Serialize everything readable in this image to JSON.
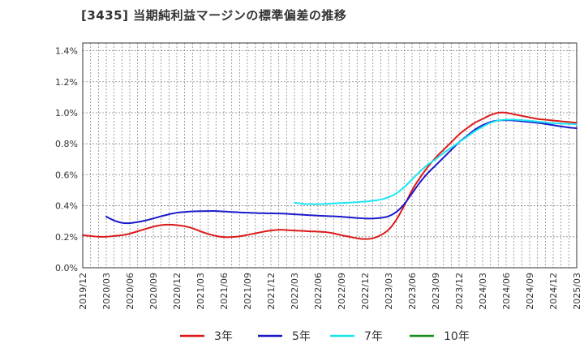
{
  "chart_data": {
    "type": "line",
    "title": "[3435]  当期純利益マージンの標準偏差の推移",
    "xlabel": "",
    "ylabel": "",
    "x_ticks": [
      "2019/12",
      "2020/03",
      "2020/06",
      "2020/09",
      "2020/12",
      "2021/03",
      "2021/06",
      "2021/09",
      "2021/12",
      "2022/03",
      "2022/06",
      "2022/09",
      "2022/12",
      "2023/03",
      "2023/06",
      "2023/09",
      "2023/12",
      "2024/03",
      "2024/06",
      "2024/09",
      "2024/12",
      "2025/03"
    ],
    "y_ticks": [
      "0.0%",
      "0.2%",
      "0.4%",
      "0.6%",
      "0.8%",
      "1.0%",
      "1.2%",
      "1.4%"
    ],
    "ylim": [
      0,
      1.45
    ],
    "x_range": [
      "2019/12",
      "2025/03"
    ],
    "grid": true,
    "legend_position": "bottom",
    "series": [
      {
        "name": "3年",
        "color": "#dd1a1a",
        "points": [
          [
            "2019/12",
            0.21
          ],
          [
            "2020/01",
            0.205
          ],
          [
            "2020/02",
            0.2
          ],
          [
            "2020/03",
            0.2
          ],
          [
            "2020/04",
            0.205
          ],
          [
            "2020/05",
            0.21
          ],
          [
            "2020/06",
            0.22
          ],
          [
            "2020/07",
            0.235
          ],
          [
            "2020/08",
            0.25
          ],
          [
            "2020/09",
            0.265
          ],
          [
            "2020/10",
            0.275
          ],
          [
            "2020/11",
            0.278
          ],
          [
            "2020/12",
            0.275
          ],
          [
            "2021/01",
            0.268
          ],
          [
            "2021/02",
            0.255
          ],
          [
            "2021/03",
            0.235
          ],
          [
            "2021/04",
            0.218
          ],
          [
            "2021/05",
            0.205
          ],
          [
            "2021/06",
            0.198
          ],
          [
            "2021/07",
            0.198
          ],
          [
            "2021/08",
            0.203
          ],
          [
            "2021/09",
            0.212
          ],
          [
            "2021/10",
            0.222
          ],
          [
            "2021/11",
            0.232
          ],
          [
            "2021/12",
            0.24
          ],
          [
            "2022/01",
            0.245
          ],
          [
            "2022/02",
            0.243
          ],
          [
            "2022/03",
            0.24
          ],
          [
            "2022/04",
            0.238
          ],
          [
            "2022/05",
            0.235
          ],
          [
            "2022/06",
            0.233
          ],
          [
            "2022/07",
            0.23
          ],
          [
            "2022/08",
            0.222
          ],
          [
            "2022/09",
            0.21
          ],
          [
            "2022/10",
            0.2
          ],
          [
            "2022/11",
            0.19
          ],
          [
            "2022/12",
            0.185
          ],
          [
            "2023/01",
            0.19
          ],
          [
            "2023/02",
            0.21
          ],
          [
            "2023/03",
            0.245
          ],
          [
            "2023/04",
            0.31
          ],
          [
            "2023/05",
            0.4
          ],
          [
            "2023/06",
            0.5
          ],
          [
            "2023/07",
            0.58
          ],
          [
            "2023/08",
            0.65
          ],
          [
            "2023/09",
            0.71
          ],
          [
            "2023/10",
            0.76
          ],
          [
            "2023/11",
            0.81
          ],
          [
            "2023/12",
            0.86
          ],
          [
            "2024/01",
            0.9
          ],
          [
            "2024/02",
            0.935
          ],
          [
            "2024/03",
            0.96
          ],
          [
            "2024/04",
            0.985
          ],
          [
            "2024/05",
            1.0
          ],
          [
            "2024/06",
            1.0
          ],
          [
            "2024/07",
            0.99
          ],
          [
            "2024/08",
            0.98
          ],
          [
            "2024/09",
            0.97
          ],
          [
            "2024/10",
            0.96
          ],
          [
            "2024/11",
            0.955
          ],
          [
            "2024/12",
            0.95
          ],
          [
            "2025/01",
            0.945
          ],
          [
            "2025/02",
            0.94
          ],
          [
            "2025/03",
            0.935
          ]
        ]
      },
      {
        "name": "5年",
        "color": "#1a1acc",
        "points": [
          [
            "2020/03",
            0.33
          ],
          [
            "2020/04",
            0.305
          ],
          [
            "2020/05",
            0.29
          ],
          [
            "2020/06",
            0.288
          ],
          [
            "2020/07",
            0.295
          ],
          [
            "2020/08",
            0.305
          ],
          [
            "2020/09",
            0.318
          ],
          [
            "2020/10",
            0.332
          ],
          [
            "2020/11",
            0.345
          ],
          [
            "2020/12",
            0.355
          ],
          [
            "2021/01",
            0.36
          ],
          [
            "2021/02",
            0.364
          ],
          [
            "2021/03",
            0.365
          ],
          [
            "2021/04",
            0.366
          ],
          [
            "2021/05",
            0.366
          ],
          [
            "2021/06",
            0.363
          ],
          [
            "2021/07",
            0.36
          ],
          [
            "2021/08",
            0.357
          ],
          [
            "2021/09",
            0.355
          ],
          [
            "2021/10",
            0.353
          ],
          [
            "2021/11",
            0.352
          ],
          [
            "2021/12",
            0.351
          ],
          [
            "2022/01",
            0.35
          ],
          [
            "2022/02",
            0.348
          ],
          [
            "2022/03",
            0.345
          ],
          [
            "2022/04",
            0.342
          ],
          [
            "2022/05",
            0.339
          ],
          [
            "2022/06",
            0.336
          ],
          [
            "2022/07",
            0.334
          ],
          [
            "2022/08",
            0.332
          ],
          [
            "2022/09",
            0.329
          ],
          [
            "2022/10",
            0.325
          ],
          [
            "2022/11",
            0.321
          ],
          [
            "2022/12",
            0.318
          ],
          [
            "2023/01",
            0.318
          ],
          [
            "2023/02",
            0.322
          ],
          [
            "2023/03",
            0.332
          ],
          [
            "2023/04",
            0.36
          ],
          [
            "2023/05",
            0.41
          ],
          [
            "2023/06",
            0.48
          ],
          [
            "2023/07",
            0.55
          ],
          [
            "2023/08",
            0.61
          ],
          [
            "2023/09",
            0.66
          ],
          [
            "2023/10",
            0.71
          ],
          [
            "2023/11",
            0.76
          ],
          [
            "2023/12",
            0.81
          ],
          [
            "2024/01",
            0.85
          ],
          [
            "2024/02",
            0.89
          ],
          [
            "2024/03",
            0.92
          ],
          [
            "2024/04",
            0.94
          ],
          [
            "2024/05",
            0.95
          ],
          [
            "2024/06",
            0.952
          ],
          [
            "2024/07",
            0.95
          ],
          [
            "2024/08",
            0.945
          ],
          [
            "2024/09",
            0.94
          ],
          [
            "2024/10",
            0.935
          ],
          [
            "2024/11",
            0.928
          ],
          [
            "2024/12",
            0.92
          ],
          [
            "2025/01",
            0.912
          ],
          [
            "2025/02",
            0.905
          ],
          [
            "2025/03",
            0.9
          ]
        ]
      },
      {
        "name": "7年",
        "color": "#1ae6f0",
        "points": [
          [
            "2022/03",
            0.42
          ],
          [
            "2022/04",
            0.413
          ],
          [
            "2022/05",
            0.41
          ],
          [
            "2022/06",
            0.41
          ],
          [
            "2022/07",
            0.412
          ],
          [
            "2022/08",
            0.415
          ],
          [
            "2022/09",
            0.418
          ],
          [
            "2022/10",
            0.42
          ],
          [
            "2022/11",
            0.423
          ],
          [
            "2022/12",
            0.427
          ],
          [
            "2023/01",
            0.432
          ],
          [
            "2023/02",
            0.44
          ],
          [
            "2023/03",
            0.455
          ],
          [
            "2023/04",
            0.48
          ],
          [
            "2023/05",
            0.52
          ],
          [
            "2023/06",
            0.57
          ],
          [
            "2023/07",
            0.62
          ],
          [
            "2023/08",
            0.665
          ],
          [
            "2023/09",
            0.7
          ],
          [
            "2023/10",
            0.74
          ],
          [
            "2023/11",
            0.775
          ],
          [
            "2023/12",
            0.81
          ],
          [
            "2024/01",
            0.845
          ],
          [
            "2024/02",
            0.88
          ],
          [
            "2024/03",
            0.91
          ],
          [
            "2024/04",
            0.935
          ],
          [
            "2024/05",
            0.95
          ],
          [
            "2024/06",
            0.955
          ],
          [
            "2024/07",
            0.955
          ],
          [
            "2024/08",
            0.952
          ],
          [
            "2024/09",
            0.948
          ],
          [
            "2024/10",
            0.943
          ],
          [
            "2024/11",
            0.938
          ],
          [
            "2024/12",
            0.933
          ],
          [
            "2025/01",
            0.93
          ],
          [
            "2025/02",
            0.928
          ],
          [
            "2025/03",
            0.925
          ]
        ]
      },
      {
        "name": "10年",
        "color": "#1a8c1a",
        "points": []
      }
    ]
  }
}
